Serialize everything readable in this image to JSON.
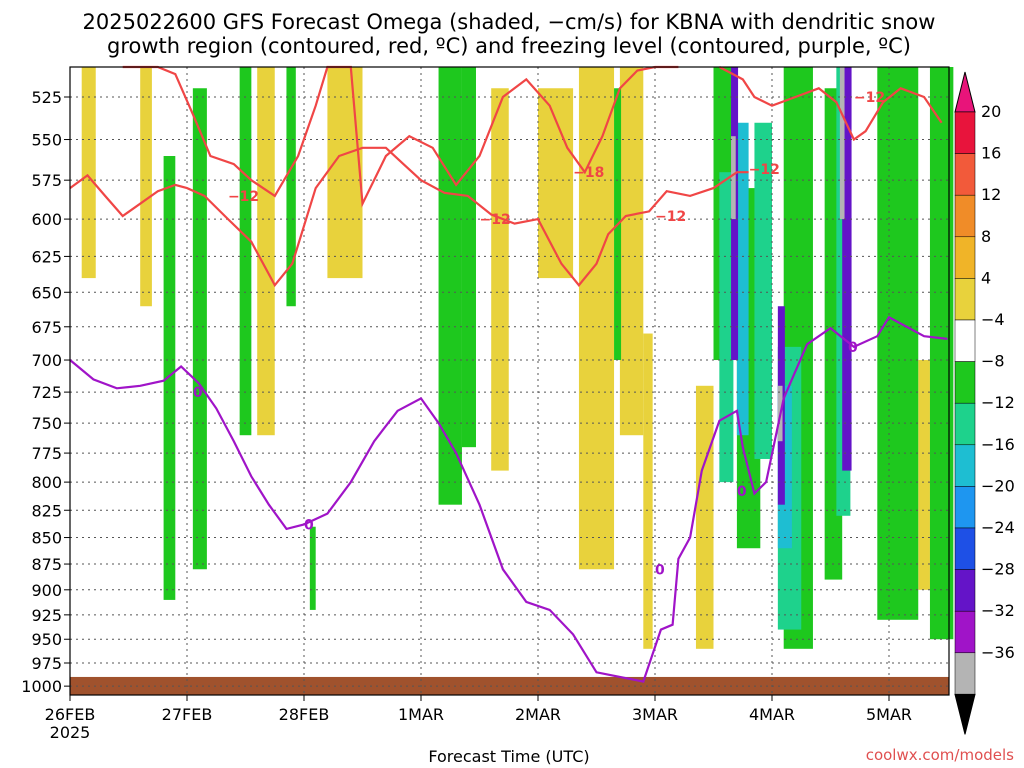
{
  "title_line1": "2025022600 GFS Forecast Omega (shaded, −cm/s) for KBNA with dendritic snow",
  "title_line2": "growth region (contoured, red, ºC) and freezing level (contoured, purple, ºC)",
  "xlabel": "Forecast Time (UTC)",
  "watermark": "coolwx.com/models",
  "chart_data": {
    "type": "heatmap",
    "x_ticks": [
      {
        "label": "26FEB",
        "sub": "2025",
        "day": 0
      },
      {
        "label": "27FEB",
        "day": 1
      },
      {
        "label": "28FEB",
        "day": 2
      },
      {
        "label": "1MAR",
        "day": 3
      },
      {
        "label": "2MAR",
        "day": 4
      },
      {
        "label": "3MAR",
        "day": 5
      },
      {
        "label": "4MAR",
        "day": 6
      },
      {
        "label": "5MAR",
        "day": 7
      }
    ],
    "xlim_days": [
      0,
      7.5
    ],
    "y_ticks": [
      525,
      550,
      575,
      600,
      625,
      650,
      675,
      700,
      725,
      750,
      775,
      800,
      825,
      850,
      875,
      900,
      925,
      950,
      975,
      1000
    ],
    "ylim": [
      500,
      1010
    ],
    "y_scale": "log",
    "grid": true,
    "colorbar": {
      "levels": [
        "20",
        "16",
        "12",
        "8",
        "4",
        "−4",
        "−8",
        "−12",
        "−16",
        "−20",
        "−24",
        "−28",
        "−32",
        "−36"
      ],
      "colors": [
        "#e8143c",
        "#f25a3a",
        "#f08c28",
        "#f0b428",
        "#e8d23c",
        "#ffffff",
        "#1ec81e",
        "#1ed28c",
        "#1ebed2",
        "#1e96f0",
        "#1e50e6",
        "#6414c8",
        "#a014c8",
        "#b4b4b4"
      ],
      "top_arrow_color": "#e8147a",
      "bottom_arrow_color": "#000000"
    },
    "contour_labels": {
      "red": [
        "−12",
        "−12",
        "−18",
        "−12",
        "−12",
        "−12"
      ],
      "purple": [
        "0",
        "0",
        "0",
        "0",
        "0"
      ]
    },
    "series": [
      {
        "color": "#f04646",
        "points": [
          [
            0,
            580
          ],
          [
            0.15,
            572
          ],
          [
            0.3,
            585
          ],
          [
            0.45,
            598
          ],
          [
            0.6,
            590
          ],
          [
            0.75,
            582
          ],
          [
            0.9,
            578
          ],
          [
            1.0,
            580
          ],
          [
            1.15,
            585
          ],
          [
            1.35,
            600
          ],
          [
            1.55,
            615
          ],
          [
            1.75,
            645
          ],
          [
            1.9,
            630
          ],
          [
            2.1,
            580
          ],
          [
            2.3,
            560
          ],
          [
            2.5,
            555
          ],
          [
            2.7,
            555
          ],
          [
            2.85,
            565
          ],
          [
            3.0,
            575
          ],
          [
            3.2,
            583
          ],
          [
            3.4,
            585
          ],
          [
            3.6,
            597
          ],
          [
            3.8,
            603
          ],
          [
            4.0,
            600
          ],
          [
            4.2,
            630
          ],
          [
            4.35,
            645
          ],
          [
            4.5,
            630
          ],
          [
            4.6,
            610
          ],
          [
            4.75,
            598
          ],
          [
            4.95,
            595
          ],
          [
            5.1,
            582
          ],
          [
            5.3,
            585
          ],
          [
            5.5,
            580
          ],
          [
            5.7,
            570
          ],
          [
            5.8,
            570
          ]
        ]
      },
      {
        "color": "#f04646",
        "points": [
          [
            0.45,
            502
          ],
          [
            0.6,
            508
          ],
          [
            0.75,
            505
          ],
          [
            0.9,
            512
          ],
          [
            1.05,
            535
          ],
          [
            1.2,
            560
          ],
          [
            1.4,
            565
          ],
          [
            1.55,
            575
          ],
          [
            1.75,
            585
          ],
          [
            1.95,
            560
          ],
          [
            2.1,
            530
          ],
          [
            2.2,
            502
          ],
          [
            2.4,
            502
          ],
          [
            2.5,
            590
          ],
          [
            2.7,
            560
          ],
          [
            2.9,
            548
          ],
          [
            3.1,
            555
          ],
          [
            3.3,
            578
          ],
          [
            3.5,
            560
          ],
          [
            3.7,
            525
          ],
          [
            3.9,
            515
          ],
          [
            4.1,
            530
          ],
          [
            4.25,
            555
          ],
          [
            4.4,
            570
          ],
          [
            4.55,
            548
          ],
          [
            4.7,
            520
          ],
          [
            4.85,
            510
          ],
          [
            5.0,
            502
          ],
          [
            5.2,
            500
          ]
        ]
      },
      {
        "color": "#f04646",
        "points": [
          [
            5.55,
            502
          ],
          [
            5.75,
            515
          ],
          [
            5.85,
            525
          ],
          [
            6.0,
            530
          ],
          [
            6.2,
            525
          ],
          [
            6.4,
            520
          ],
          [
            6.55,
            528
          ],
          [
            6.7,
            550
          ],
          [
            6.8,
            545
          ],
          [
            6.95,
            528
          ],
          [
            7.1,
            520
          ],
          [
            7.3,
            525
          ],
          [
            7.45,
            540
          ]
        ]
      },
      {
        "color": "#a014c8",
        "points": [
          [
            0,
            700
          ],
          [
            0.2,
            715
          ],
          [
            0.4,
            722
          ],
          [
            0.6,
            720
          ],
          [
            0.8,
            716
          ],
          [
            0.95,
            705
          ],
          [
            1.1,
            718
          ],
          [
            1.25,
            738
          ],
          [
            1.4,
            765
          ],
          [
            1.55,
            795
          ],
          [
            1.7,
            820
          ],
          [
            1.85,
            842
          ],
          [
            2.0,
            838
          ],
          [
            2.2,
            828
          ],
          [
            2.4,
            800
          ],
          [
            2.6,
            765
          ],
          [
            2.8,
            740
          ],
          [
            3.0,
            730
          ],
          [
            3.15,
            750
          ],
          [
            3.3,
            775
          ],
          [
            3.5,
            820
          ],
          [
            3.7,
            880
          ],
          [
            3.9,
            912
          ],
          [
            4.1,
            920
          ],
          [
            4.3,
            945
          ],
          [
            4.5,
            985
          ],
          [
            4.7,
            990
          ],
          [
            4.9,
            995
          ],
          [
            5.05,
            940
          ],
          [
            5.15,
            935
          ],
          [
            5.2,
            870
          ],
          [
            5.3,
            850
          ],
          [
            5.4,
            790
          ],
          [
            5.55,
            748
          ],
          [
            5.7,
            740
          ],
          [
            5.75,
            770
          ],
          [
            5.85,
            810
          ],
          [
            5.95,
            800
          ],
          [
            6.1,
            730
          ],
          [
            6.3,
            688
          ],
          [
            6.5,
            676
          ],
          [
            6.7,
            690
          ],
          [
            6.9,
            682
          ],
          [
            7.0,
            668
          ],
          [
            7.3,
            682
          ],
          [
            7.5,
            684
          ]
        ]
      }
    ]
  }
}
